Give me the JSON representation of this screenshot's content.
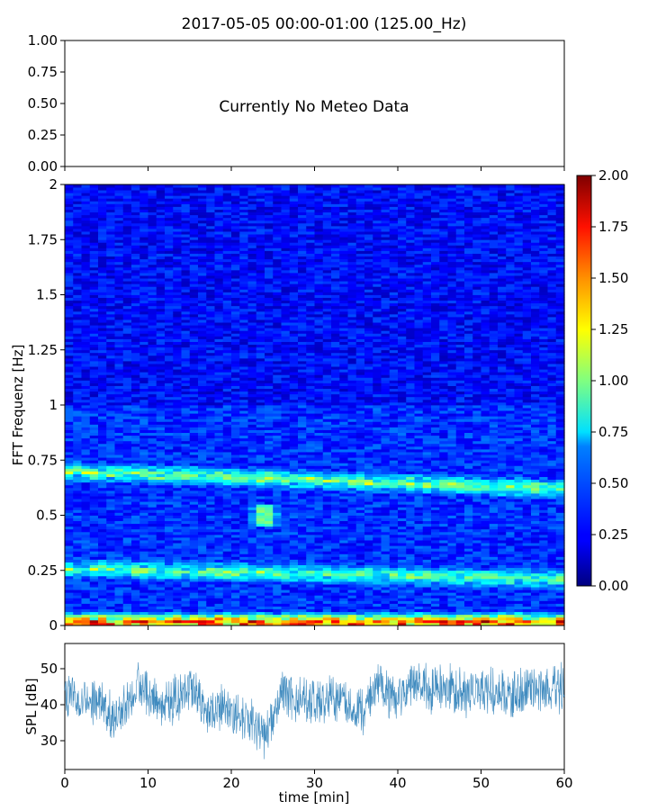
{
  "figure": {
    "title": "2017-05-05 00:00-01:00 (125.00_Hz)"
  },
  "chart_data": [
    {
      "type": "line",
      "name": "meteo",
      "annotation": "Currently No Meteo Data",
      "ylim": [
        0,
        1
      ],
      "yticks": [
        "0.00",
        "0.25",
        "0.50",
        "0.75",
        "1.00"
      ],
      "xlim": [
        0,
        60
      ],
      "series": []
    },
    {
      "type": "heatmap",
      "name": "spectrogram",
      "ylabel": "FFT Frequenz [Hz]",
      "ylim": [
        0,
        2
      ],
      "yticks": [
        "0",
        "0.25",
        "0.5",
        "0.75",
        "1",
        "1.25",
        "1.5",
        "1.75",
        "2"
      ],
      "xlim": [
        0,
        60
      ],
      "colormap": "jet",
      "bands": [
        {
          "label": "low-frequency band",
          "freq_start": 0.7,
          "freq_end": 0.62,
          "time_start": 0,
          "time_end": 60,
          "intensity": 0.85
        },
        {
          "label": "lower band",
          "freq_start": 0.26,
          "freq_end": 0.21,
          "time_start": 0,
          "time_end": 60,
          "intensity": 0.75
        },
        {
          "label": "near-zero band",
          "freq_start": 0.015,
          "freq_end": 0.015,
          "time_start": 0,
          "time_end": 60,
          "intensity": 1.6
        }
      ],
      "hotspot": {
        "time": 24,
        "freq": 0.5,
        "intensity": 1.1
      },
      "colorbar": {
        "ylim": [
          0,
          2
        ],
        "ticks": [
          "0.00",
          "0.25",
          "0.50",
          "0.75",
          "1.00",
          "1.25",
          "1.50",
          "1.75",
          "2.00"
        ]
      }
    },
    {
      "type": "line",
      "name": "spl",
      "xlabel": "time [min]",
      "ylabel": "SPL [dB]",
      "xlim": [
        0,
        60
      ],
      "ylim": [
        22,
        57
      ],
      "xticks": [
        "0",
        "10",
        "20",
        "30",
        "40",
        "50",
        "60"
      ],
      "yticks": [
        "30",
        "40",
        "50"
      ],
      "series_color": "#1f77b4",
      "envelope": {
        "t": [
          0,
          3,
          5,
          6,
          8,
          9,
          10,
          12,
          14,
          15,
          17,
          19,
          20,
          22,
          23,
          24,
          25,
          26,
          28,
          30,
          32,
          34,
          36,
          37,
          38,
          39,
          40,
          42,
          44,
          46,
          48,
          50,
          52,
          54,
          56,
          58,
          60
        ],
        "mean": [
          43,
          42,
          39,
          36,
          43,
          46,
          44,
          40,
          42,
          44,
          38,
          39,
          37,
          36,
          34,
          31,
          36,
          44,
          42,
          41,
          42,
          41,
          38,
          44,
          46,
          43,
          41,
          47,
          44,
          45,
          43,
          44,
          43,
          43,
          44,
          44,
          45
        ]
      }
    }
  ]
}
